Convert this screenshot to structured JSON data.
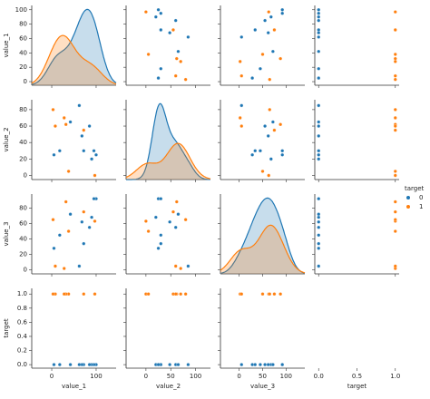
{
  "chart_data": {
    "type": "pairplot",
    "hue": "target",
    "legend_title": "target",
    "series": [
      {
        "name": "0",
        "color": "#1f77b4"
      },
      {
        "name": "1",
        "color": "#ff7f0e"
      }
    ],
    "axes": [
      {
        "label": "value_1",
        "xlim": [
          -45,
          145
        ],
        "xticks": [
          0,
          100
        ],
        "ylim": [
          -5,
          106
        ],
        "yticks": [
          0,
          20,
          40,
          60,
          80,
          100
        ]
      },
      {
        "label": "value_2",
        "xlim": [
          -40,
          130
        ],
        "xticks": [
          0,
          50,
          100
        ],
        "ylim": [
          -5,
          92
        ],
        "yticks": [
          0,
          20,
          40,
          60,
          80
        ]
      },
      {
        "label": "value_3",
        "xlim": [
          -40,
          140
        ],
        "xticks": [
          0,
          50,
          100
        ],
        "ylim": [
          -5,
          98
        ],
        "yticks": [
          0,
          20,
          40,
          60,
          80
        ]
      },
      {
        "label": "target",
        "xlim": [
          -0.05,
          1.05
        ],
        "xticks": [
          0,
          1
        ],
        "ylim": [
          -0.05,
          1.08
        ],
        "yticks": [
          {
            "value": 0,
            "label": "0.0"
          },
          {
            "value": 0.2,
            "label": "0.2"
          },
          {
            "value": 0.4,
            "label": "0.4"
          },
          {
            "value": 0.6,
            "label": "0.6"
          },
          {
            "value": 0.8,
            "label": "0.8"
          },
          {
            "value": 1,
            "label": "1.0"
          }
        ],
        "bottom_xticks": [
          {
            "value": 0,
            "label": "0.0"
          },
          {
            "value": 0.5,
            "label": "0.5"
          },
          {
            "value": 1,
            "label": "1.0"
          }
        ]
      }
    ],
    "data": {
      "value_1": [
        100,
        95,
        90,
        85,
        72,
        68,
        62,
        42,
        18,
        5,
        97,
        72,
        38,
        32,
        28,
        8,
        3
      ],
      "value_2": [
        25,
        30,
        20,
        60,
        30,
        48,
        85,
        65,
        30,
        25,
        0,
        55,
        5,
        62,
        70,
        60,
        80
      ],
      "value_3": [
        92,
        92,
        68,
        55,
        34,
        62,
        5,
        72,
        45,
        28,
        63,
        75,
        50,
        88,
        2,
        5,
        65
      ],
      "target": [
        0,
        0,
        0,
        0,
        0,
        0,
        0,
        0,
        0,
        0,
        1,
        1,
        1,
        1,
        1,
        1,
        1
      ]
    }
  }
}
